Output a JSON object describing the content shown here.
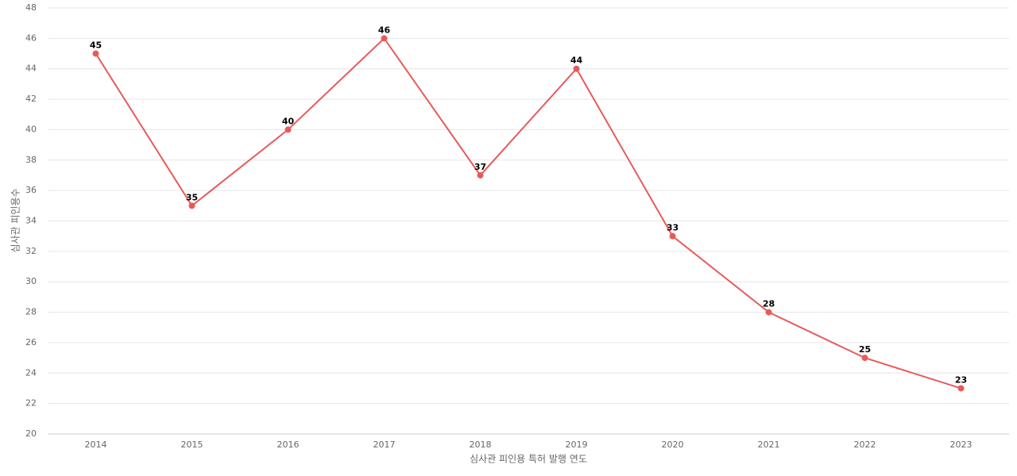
{
  "chart_data": {
    "type": "line",
    "x_label": "심사관 피인용 특허 발행 연도",
    "y_label": "심사관 피인용수",
    "categories": [
      "2014",
      "2015",
      "2016",
      "2017",
      "2018",
      "2019",
      "2020",
      "2021",
      "2022",
      "2023"
    ],
    "values": [
      45,
      35,
      40,
      46,
      37,
      44,
      33,
      28,
      25,
      23
    ],
    "color": "#e85a5a",
    "ylim": [
      20,
      48
    ],
    "yticks": [
      20,
      22,
      24,
      26,
      28,
      30,
      32,
      34,
      36,
      38,
      40,
      42,
      44,
      46,
      48
    ],
    "grid": true
  }
}
